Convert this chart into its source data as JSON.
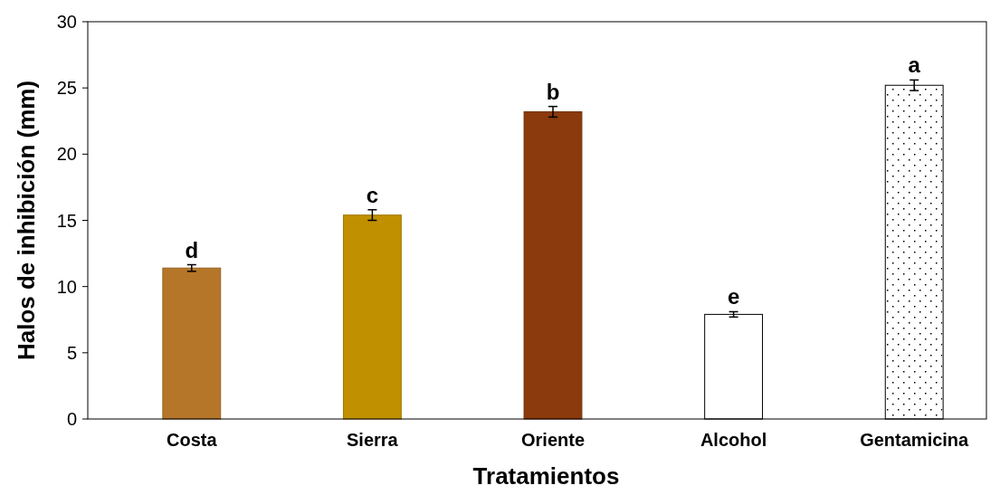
{
  "chart_data": {
    "type": "bar",
    "xlabel": "Tratamientos",
    "ylabel": "Halos de inhibición (mm)",
    "categories": [
      "Costa",
      "Sierra",
      "Oriente",
      "Alcohol",
      "Gentamicina"
    ],
    "values": [
      11.4,
      15.4,
      23.2,
      7.9,
      25.2
    ],
    "colors": [
      "#b5762a",
      "#c09000",
      "#8a3a0c",
      "#ffffff",
      "#ffffff"
    ],
    "errors": [
      0.25,
      0.4,
      0.4,
      0.2,
      0.4
    ],
    "ylim": [
      0,
      30
    ],
    "yticks": [
      0,
      5,
      10,
      15,
      20,
      25,
      30
    ],
    "grid": false,
    "annotations": [
      "d",
      "c",
      "b",
      "e",
      "a"
    ]
  }
}
